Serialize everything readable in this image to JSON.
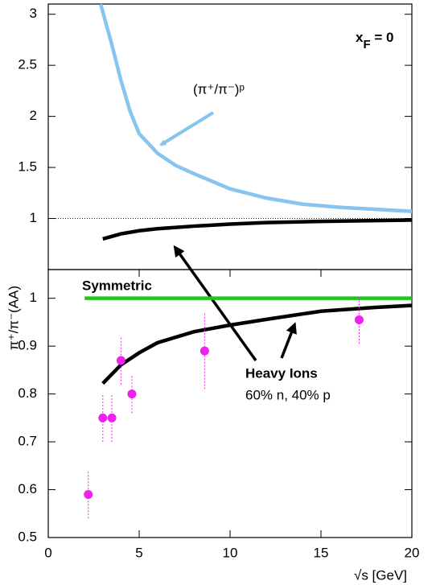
{
  "chart_data": [
    {
      "type": "line",
      "xlim": [
        0,
        20
      ],
      "ylim": [
        0.5,
        3.1
      ],
      "yticks": [
        1,
        1.5,
        2,
        2.5,
        3
      ],
      "hline": 1,
      "annotations": [
        [
          {
            "text": "x"
          },
          {
            "text": "F",
            "baseline": "sub"
          },
          {
            "text": " = 0"
          }
        ]
      ],
      "series": [
        {
          "name": "(π⁺/π⁻)ᵖ",
          "color": "#87c4ee",
          "x": [
            2.88,
            3.5,
            4,
            4.5,
            5,
            6,
            7,
            8,
            10,
            12,
            14,
            16,
            18,
            20
          ],
          "values": [
            3.1,
            2.7,
            2.35,
            2.05,
            1.83,
            1.64,
            1.52,
            1.44,
            1.29,
            1.2,
            1.14,
            1.11,
            1.09,
            1.07
          ]
        },
        {
          "color": "#000000",
          "x": [
            3,
            4,
            5,
            6,
            8,
            10,
            12,
            15,
            18,
            20
          ],
          "values": [
            0.8,
            0.85,
            0.88,
            0.9,
            0.925,
            0.945,
            0.96,
            0.972,
            0.98,
            0.985
          ]
        }
      ]
    },
    {
      "type": "line",
      "xlim": [
        0,
        20
      ],
      "xticks": [
        0,
        5,
        10,
        15,
        20
      ],
      "ylim": [
        0.5,
        1.06
      ],
      "yticks": [
        0.5,
        0.6,
        0.7,
        0.8,
        0.9,
        1
      ],
      "xlabel": "√s  [GeV]",
      "ylabel": "π⁺/π⁻(AA)",
      "annotations": [
        "60% n, 40% p"
      ],
      "series": [
        {
          "name": "Symmetric",
          "color": "#22c422",
          "x": [
            2,
            20
          ],
          "values": [
            1,
            1
          ]
        },
        {
          "name": "Heavy Ions",
          "color": "#000000",
          "x": [
            3,
            4,
            5,
            6,
            8,
            10,
            12,
            15,
            18,
            20
          ],
          "values": [
            0.822,
            0.861,
            0.886,
            0.907,
            0.93,
            0.944,
            0.956,
            0.973,
            0.981,
            0.985
          ]
        },
        {
          "type": "scatter",
          "color": "#ee22ee",
          "x": [
            2.2,
            3,
            3.5,
            4,
            4.6,
            8.6,
            17.1
          ],
          "values": [
            0.59,
            0.75,
            0.75,
            0.87,
            0.8,
            0.89,
            0.955
          ],
          "errors": [
            0.05,
            0.05,
            0.05,
            0.05,
            0.04,
            0.08,
            0.05
          ]
        }
      ]
    }
  ]
}
